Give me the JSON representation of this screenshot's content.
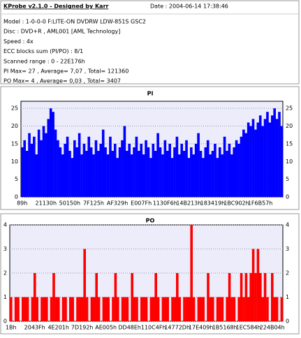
{
  "header": {
    "title": "KProbe v2.1.0 - Designed by Karr",
    "date": "Date : 2004-06-14 17:38:46",
    "lines": [
      "Model : 1-0-0-0 F:LITE-ON DVDRW LDW-851S  GSC2",
      "Disc : DVD+R , AML001 [AML Technology]",
      "Speed : 4x",
      "ECC blocks sum (PI/PO) : 8/1",
      "Scanned range : 0 - 22E176h",
      "PI Max= 27 , Average= 7,07 , Total= 121360",
      "PO Max= 4 , Average= 0,03 , Total= 3407"
    ]
  },
  "chart_data": [
    {
      "type": "bar",
      "title": "PI",
      "color": "#0000ff",
      "grid": true,
      "ylim": [
        0,
        27
      ],
      "yticks": [
        0,
        5,
        10,
        15,
        20,
        25
      ],
      "categories": [
        "89h",
        null,
        null,
        null,
        null,
        null,
        null,
        null,
        null,
        null,
        "21130h",
        null,
        null,
        null,
        null,
        null,
        null,
        null,
        null,
        null,
        "50150h",
        null,
        null,
        null,
        null,
        null,
        null,
        null,
        null,
        null,
        "7F125h",
        null,
        null,
        null,
        null,
        null,
        null,
        null,
        null,
        null,
        "AF329h",
        null,
        null,
        null,
        null,
        null,
        null,
        null,
        null,
        null,
        "E007Fh",
        null,
        null,
        null,
        null,
        null,
        null,
        null,
        null,
        null,
        "1130F6h",
        null,
        null,
        null,
        null,
        null,
        null,
        null,
        null,
        null,
        "14B213h",
        null,
        null,
        null,
        null,
        null,
        null,
        null,
        null,
        null,
        "183419h",
        null,
        null,
        null,
        null,
        null,
        null,
        null,
        null,
        null,
        "1BC902h",
        null,
        null,
        null,
        null,
        null,
        null,
        null,
        null,
        null,
        "1F6B57h",
        null,
        null,
        null,
        null,
        null,
        null,
        null,
        null,
        null
      ],
      "values": [
        14,
        16,
        13,
        18,
        15,
        17,
        12,
        19,
        16,
        20,
        18,
        22,
        25,
        24,
        19,
        16,
        14,
        12,
        15,
        17,
        13,
        11,
        16,
        14,
        18,
        12,
        15,
        13,
        17,
        14,
        12,
        16,
        13,
        15,
        19,
        14,
        12,
        17,
        13,
        15,
        11,
        14,
        16,
        20,
        13,
        15,
        12,
        14,
        17,
        13,
        15,
        12,
        16,
        14,
        11,
        15,
        13,
        18,
        14,
        12,
        16,
        13,
        15,
        11,
        14,
        17,
        12,
        15,
        13,
        16,
        11,
        14,
        12,
        15,
        18,
        13,
        11,
        14,
        16,
        12,
        13,
        15,
        11,
        14,
        12,
        17,
        13,
        15,
        12,
        14,
        16,
        15,
        17,
        19,
        18,
        21,
        20,
        22,
        19,
        21,
        23,
        20,
        22,
        24,
        21,
        23,
        25,
        22,
        24,
        20
      ]
    },
    {
      "type": "bar",
      "title": "PO",
      "color": "#ff0000",
      "grid": true,
      "ylim": [
        0,
        4
      ],
      "yticks": [
        0,
        1,
        2,
        3,
        4
      ],
      "categories": [
        "1Bh",
        null,
        null,
        null,
        null,
        null,
        null,
        null,
        null,
        null,
        "2043Fh",
        null,
        null,
        null,
        null,
        null,
        null,
        null,
        null,
        null,
        "4E201h",
        null,
        null,
        null,
        null,
        null,
        null,
        null,
        null,
        null,
        "7D192h",
        null,
        null,
        null,
        null,
        null,
        null,
        null,
        null,
        null,
        "AE005h",
        null,
        null,
        null,
        null,
        null,
        null,
        null,
        null,
        null,
        "DD48Eh",
        null,
        null,
        null,
        null,
        null,
        null,
        null,
        null,
        null,
        "110C4Fh",
        null,
        null,
        null,
        null,
        null,
        null,
        null,
        null,
        null,
        "14772Dh",
        null,
        null,
        null,
        null,
        null,
        null,
        null,
        null,
        null,
        "17E409h",
        null,
        null,
        null,
        null,
        null,
        null,
        null,
        null,
        null,
        "1B5168h",
        null,
        null,
        null,
        null,
        null,
        null,
        null,
        null,
        null,
        "1EC584h",
        null,
        null,
        null,
        null,
        null,
        null,
        null,
        null,
        null,
        "224B04h",
        null,
        null,
        null,
        null
      ],
      "values": [
        1,
        0,
        1,
        1,
        0,
        1,
        1,
        1,
        0,
        1,
        2,
        1,
        0,
        1,
        1,
        1,
        0,
        1,
        2,
        1,
        1,
        0,
        1,
        1,
        0,
        1,
        1,
        0,
        1,
        1,
        1,
        3,
        1,
        0,
        1,
        1,
        2,
        1,
        0,
        1,
        1,
        1,
        0,
        1,
        2,
        1,
        0,
        1,
        1,
        1,
        0,
        2,
        1,
        1,
        0,
        1,
        1,
        1,
        0,
        1,
        1,
        2,
        1,
        0,
        1,
        1,
        1,
        0,
        1,
        1,
        2,
        1,
        0,
        1,
        1,
        1,
        4,
        1,
        0,
        1,
        1,
        1,
        0,
        2,
        1,
        1,
        0,
        1,
        1,
        1,
        0,
        1,
        2,
        1,
        1,
        0,
        1,
        2,
        1,
        2,
        1,
        2,
        3,
        2,
        3,
        2,
        1,
        2,
        1,
        0,
        2,
        1,
        1,
        0,
        1
      ]
    }
  ]
}
